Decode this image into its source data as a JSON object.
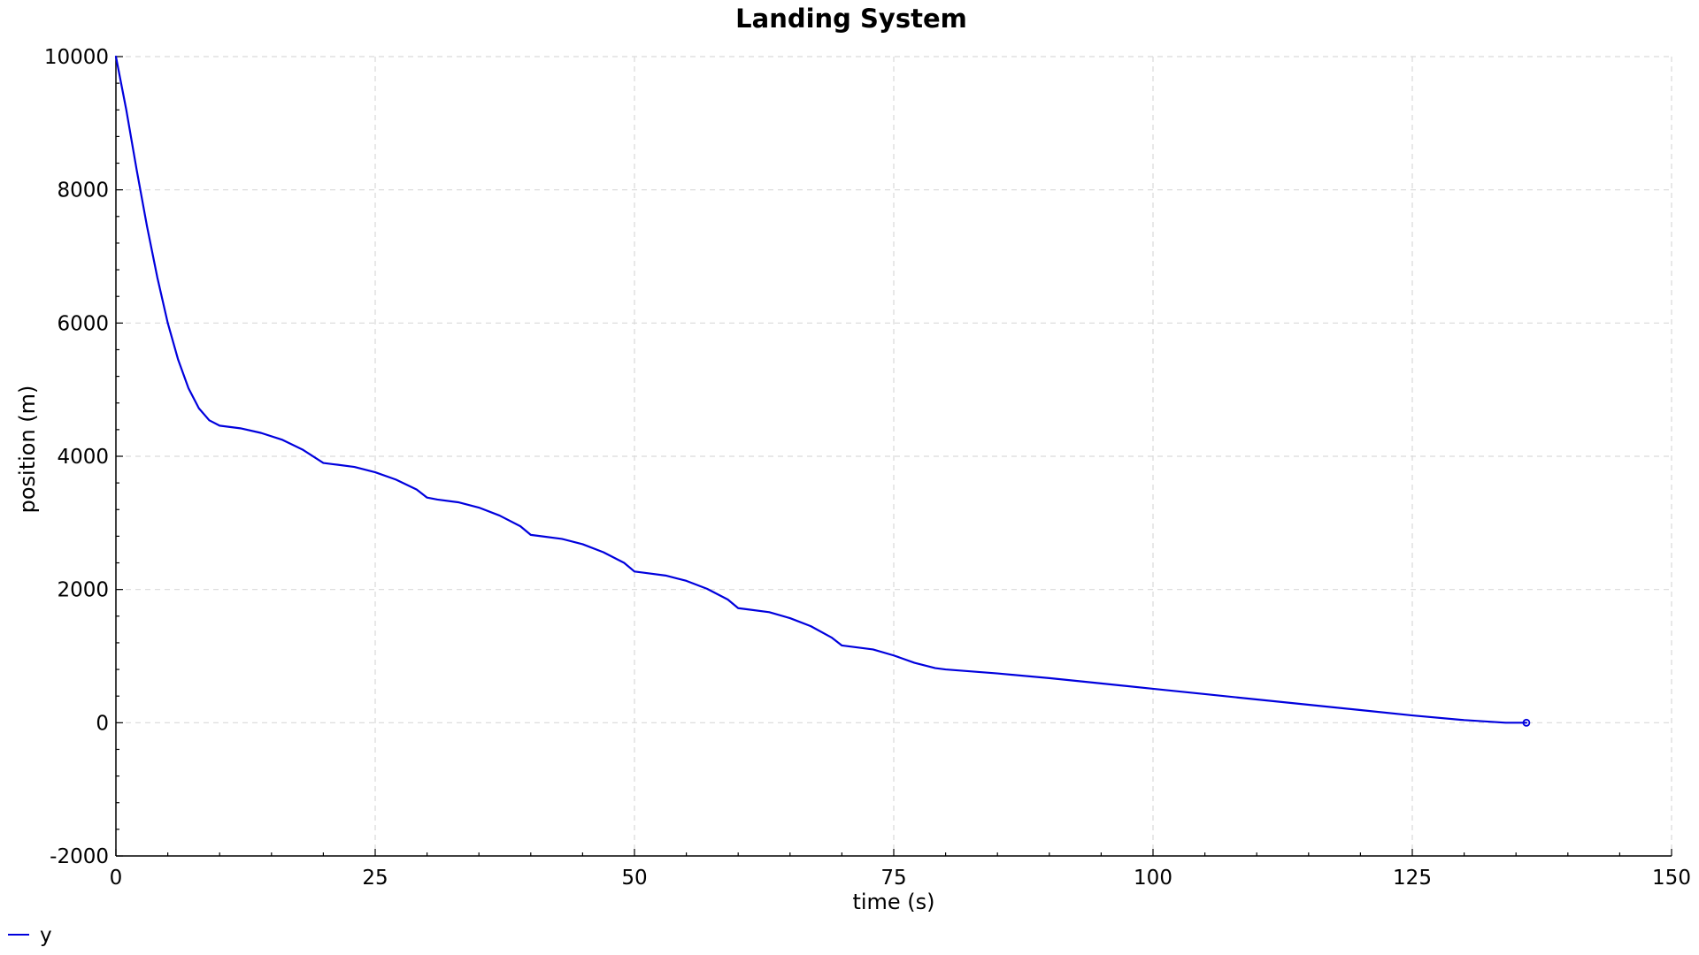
{
  "chart_data": {
    "type": "line",
    "title": "Landing System",
    "xlabel": "time (s)",
    "ylabel": "position (m)",
    "xlim": [
      0,
      150
    ],
    "ylim": [
      -2000,
      10000
    ],
    "x_ticks": [
      0,
      25,
      50,
      75,
      100,
      125,
      150
    ],
    "y_ticks": [
      -2000,
      0,
      2000,
      4000,
      6000,
      8000,
      10000
    ],
    "grid": true,
    "legend_position": "bottom-left",
    "series": [
      {
        "name": "y",
        "color": "#0000dd",
        "end_marker": "circle",
        "x": [
          0,
          1,
          2,
          3,
          4,
          5,
          6,
          7,
          8,
          9,
          10,
          11,
          12,
          14,
          16,
          18,
          20,
          21,
          23,
          25,
          27,
          29,
          30,
          31,
          33,
          35,
          37,
          39,
          40,
          41,
          43,
          45,
          47,
          49,
          50,
          51,
          53,
          55,
          57,
          59,
          60,
          61,
          63,
          65,
          67,
          69,
          70,
          71,
          73,
          75,
          77,
          79,
          80,
          85,
          90,
          95,
          100,
          105,
          110,
          115,
          120,
          125,
          130,
          134,
          136
        ],
        "values": [
          10000,
          9200,
          8300,
          7450,
          6680,
          6000,
          5450,
          5020,
          4720,
          4540,
          4460,
          4440,
          4420,
          4350,
          4250,
          4100,
          3900,
          3880,
          3840,
          3760,
          3650,
          3500,
          3380,
          3350,
          3310,
          3230,
          3110,
          2950,
          2820,
          2800,
          2760,
          2680,
          2560,
          2400,
          2270,
          2250,
          2210,
          2130,
          2010,
          1850,
          1720,
          1700,
          1660,
          1570,
          1450,
          1280,
          1160,
          1140,
          1100,
          1010,
          900,
          820,
          800,
          740,
          670,
          590,
          510,
          430,
          350,
          270,
          190,
          110,
          40,
          0,
          0
        ]
      }
    ]
  }
}
